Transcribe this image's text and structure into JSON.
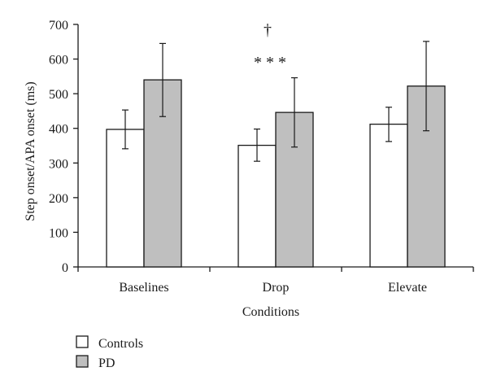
{
  "chart_data": {
    "type": "bar",
    "title": "",
    "xlabel": "Conditions",
    "ylabel": "Step onset/APA onset (ms)",
    "ylim": [
      0,
      700
    ],
    "yticks": [
      0,
      100,
      200,
      300,
      400,
      500,
      600,
      700
    ],
    "categories": [
      "Baselines",
      "Drop",
      "Elevate"
    ],
    "series": [
      {
        "name": "Controls",
        "color": "#ffffff",
        "values": [
          397,
          351,
          412
        ],
        "error": [
          [
            341,
            453
          ],
          [
            305,
            398
          ],
          [
            362,
            461
          ]
        ]
      },
      {
        "name": "PD",
        "color": "#bfbfbf",
        "values": [
          540,
          446,
          522
        ],
        "error": [
          [
            434,
            645
          ],
          [
            346,
            546
          ],
          [
            393,
            651
          ]
        ]
      }
    ],
    "annotations": [
      {
        "text": "* * *",
        "category": "Drop"
      },
      {
        "text": "†",
        "category": "Drop"
      }
    ],
    "legend": "bottom-left",
    "grid": false
  }
}
